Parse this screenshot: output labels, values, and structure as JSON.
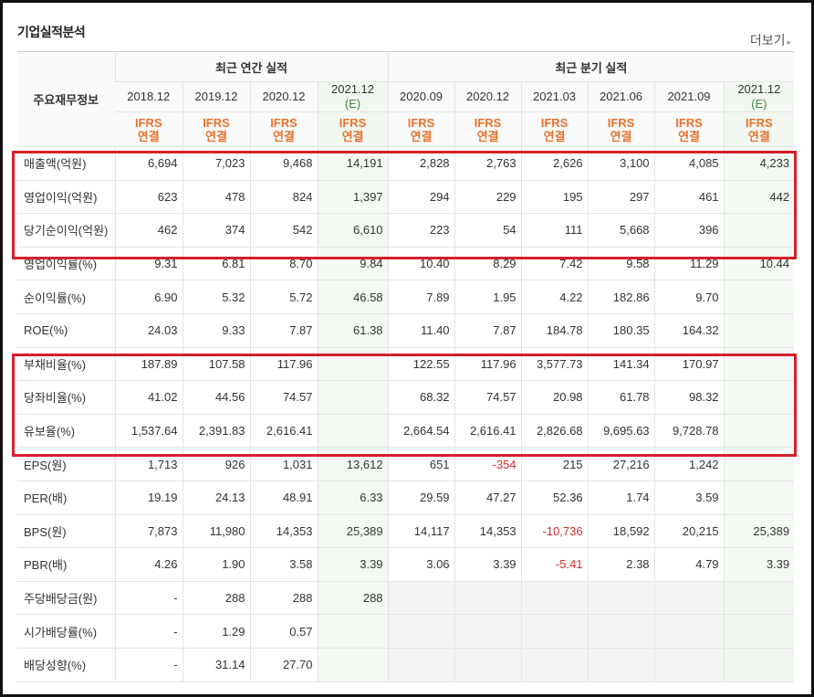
{
  "section_title": "기업실적분석",
  "more_label": "더보기",
  "more_arrow": "▸",
  "header": {
    "row_label": "주요재무정보",
    "annual_group": "최근 연간 실적",
    "quarter_group": "최근 분기 실적",
    "periods": [
      {
        "date": "2018.12",
        "est": ""
      },
      {
        "date": "2019.12",
        "est": ""
      },
      {
        "date": "2020.12",
        "est": ""
      },
      {
        "date": "2021.12",
        "est": "(E)"
      },
      {
        "date": "2020.09",
        "est": ""
      },
      {
        "date": "2020.12",
        "est": ""
      },
      {
        "date": "2021.03",
        "est": ""
      },
      {
        "date": "2021.06",
        "est": ""
      },
      {
        "date": "2021.09",
        "est": ""
      },
      {
        "date": "2021.12",
        "est": "(E)"
      }
    ],
    "ifrs_line1": "IFRS",
    "ifrs_line2": "연결"
  },
  "rows": [
    {
      "label": "매출액(억원)",
      "values": [
        "6,694",
        "7,023",
        "9,468",
        "14,191",
        "2,828",
        "2,763",
        "2,626",
        "3,100",
        "4,085",
        "4,233"
      ]
    },
    {
      "label": "영업이익(억원)",
      "values": [
        "623",
        "478",
        "824",
        "1,397",
        "294",
        "229",
        "195",
        "297",
        "461",
        "442"
      ]
    },
    {
      "label": "당기순이익(억원)",
      "values": [
        "462",
        "374",
        "542",
        "6,610",
        "223",
        "54",
        "111",
        "5,668",
        "396",
        ""
      ]
    },
    {
      "label": "영업이익률(%)",
      "values": [
        "9.31",
        "6.81",
        "8.70",
        "9.84",
        "10.40",
        "8.29",
        "7.42",
        "9.58",
        "11.29",
        "10.44"
      ]
    },
    {
      "label": "순이익률(%)",
      "values": [
        "6.90",
        "5.32",
        "5.72",
        "46.58",
        "7.89",
        "1.95",
        "4.22",
        "182.86",
        "9.70",
        ""
      ]
    },
    {
      "label": "ROE(%)",
      "values": [
        "24.03",
        "9.33",
        "7.87",
        "61.38",
        "11.40",
        "7.87",
        "184.78",
        "180.35",
        "164.32",
        ""
      ]
    },
    {
      "label": "부채비율(%)",
      "values": [
        "187.89",
        "107.58",
        "117.96",
        "",
        "122.55",
        "117.96",
        "3,577.73",
        "141.34",
        "170.97",
        ""
      ]
    },
    {
      "label": "당좌비율(%)",
      "values": [
        "41.02",
        "44.56",
        "74.57",
        "",
        "68.32",
        "74.57",
        "20.98",
        "61.78",
        "98.32",
        ""
      ]
    },
    {
      "label": "유보율(%)",
      "values": [
        "1,537.64",
        "2,391.83",
        "2,616.41",
        "",
        "2,664.54",
        "2,616.41",
        "2,826.68",
        "9,695.63",
        "9,728.78",
        ""
      ]
    },
    {
      "label": "EPS(원)",
      "values": [
        "1,713",
        "926",
        "1,031",
        "13,612",
        "651",
        "-354",
        "215",
        "27,216",
        "1,242",
        ""
      ]
    },
    {
      "label": "PER(배)",
      "values": [
        "19.19",
        "24.13",
        "48.91",
        "6.33",
        "29.59",
        "47.27",
        "52.36",
        "1.74",
        "3.59",
        ""
      ]
    },
    {
      "label": "BPS(원)",
      "values": [
        "7,873",
        "11,980",
        "14,353",
        "25,389",
        "14,117",
        "14,353",
        "-10,736",
        "18,592",
        "20,215",
        "25,389"
      ]
    },
    {
      "label": "PBR(배)",
      "values": [
        "4.26",
        "1.90",
        "3.58",
        "3.39",
        "3.06",
        "3.39",
        "-5.41",
        "2.38",
        "4.79",
        "3.39"
      ]
    },
    {
      "label": "주당배당금(원)",
      "values": [
        "-",
        "288",
        "288",
        "288",
        "",
        "",
        "",
        "",
        "",
        ""
      ]
    },
    {
      "label": "시가배당률(%)",
      "values": [
        "-",
        "1.29",
        "0.57",
        "",
        "",
        "",
        "",
        "",
        "",
        ""
      ]
    },
    {
      "label": "배당성향(%)",
      "values": [
        "-",
        "31.14",
        "27.70",
        "",
        "",
        "",
        "",
        "",
        "",
        ""
      ]
    }
  ],
  "colors": {
    "highlight_box": "#d6202a",
    "negative": "#d12b2b",
    "ifrs": "#e8702a",
    "estimate": "#3a8a3a"
  }
}
